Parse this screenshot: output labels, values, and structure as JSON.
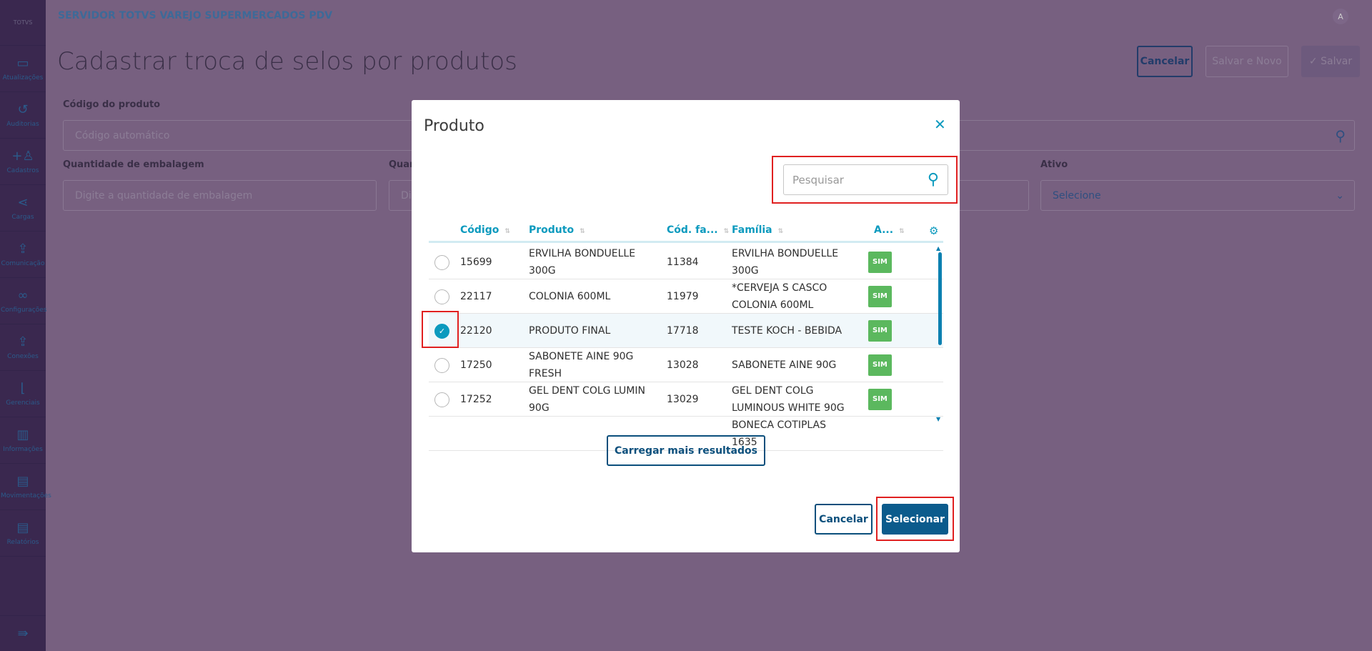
{
  "sidebar": {
    "logo": "TOTVS",
    "items": [
      {
        "label": "Atualizações",
        "icon": "card-icon",
        "glyph": "▭"
      },
      {
        "label": "Auditorias",
        "icon": "history-icon",
        "glyph": "↺"
      },
      {
        "label": "Cadastros",
        "icon": "add-user-icon",
        "glyph": "+♙"
      },
      {
        "label": "Cargas",
        "icon": "share-icon",
        "glyph": "⋖"
      },
      {
        "label": "Comunicação",
        "icon": "file-upload-icon",
        "glyph": "⇪"
      },
      {
        "label": "Configurações",
        "icon": "link-icon",
        "glyph": "∞"
      },
      {
        "label": "Conexões",
        "icon": "file-upload-icon",
        "glyph": "⇪"
      },
      {
        "label": "Gerenciais",
        "icon": "chart-icon",
        "glyph": "⌊"
      },
      {
        "label": "Informações",
        "icon": "building-icon",
        "glyph": "▥"
      },
      {
        "label": "Movimentações",
        "icon": "clipboard-icon",
        "glyph": "▤"
      },
      {
        "label": "Relatórios",
        "icon": "document-icon",
        "glyph": "▤"
      }
    ],
    "collapse_glyph": "⇛"
  },
  "header": {
    "title": "SERVIDOR TOTVS VAREJO SUPERMERCADOS PDV",
    "avatar": "A"
  },
  "page": {
    "title": "Cadastrar troca de selos por produtos",
    "cancel": "Cancelar",
    "save_new": "Salvar e Novo",
    "save": "✓ Salvar"
  },
  "form": {
    "codigo_label": "Código do produto",
    "codigo_placeholder": "Código automático",
    "qtd_label": "Quantidade de embalagem",
    "qtd_placeholder": "Digite a quantidade de embalagem",
    "qtd2_label": "Quan",
    "qtd2_placeholder": "Di",
    "ativo_label": "Ativo",
    "ativo_value": "Selecione"
  },
  "modal": {
    "title": "Produto",
    "close": "✕",
    "search_placeholder": "Pesquisar",
    "columns": [
      "Código",
      "Produto",
      "Cód. fa...",
      "Família",
      "A..."
    ],
    "rows": [
      {
        "codigo": "15699",
        "produto": "ERVILHA BONDUELLE 300G",
        "cod_familia": "11384",
        "familia": "ERVILHA BONDUELLE 300G",
        "ativo": "SIM",
        "selected": false
      },
      {
        "codigo": "22117",
        "produto": "COLONIA 600ML",
        "cod_familia": "11979",
        "familia": "*CERVEJA S CASCO COLONIA 600ML",
        "ativo": "SIM",
        "selected": false
      },
      {
        "codigo": "22120",
        "produto": "PRODUTO FINAL",
        "cod_familia": "17718",
        "familia": "TESTE KOCH - BEBIDA",
        "ativo": "SIM",
        "selected": true
      },
      {
        "codigo": "17250",
        "produto": "SABONETE AINE 90G FRESH",
        "cod_familia": "13028",
        "familia": "SABONETE AINE 90G",
        "ativo": "SIM",
        "selected": false
      },
      {
        "codigo": "17252",
        "produto": "GEL DENT COLG LUMIN 90G",
        "cod_familia": "13029",
        "familia": "GEL DENT COLG LUMINOUS WHITE 90G",
        "ativo": "SIM",
        "selected": false
      },
      {
        "codigo": "",
        "produto": "",
        "cod_familia": "",
        "familia": "BONECA COTIPLAS 1635",
        "ativo": "",
        "selected": false
      }
    ],
    "load_more": "Carregar mais resultados",
    "cancel": "Cancelar",
    "select": "Selecionar"
  },
  "colors": {
    "accent": "#0c9abe",
    "primary_button": "#0b5b8c",
    "badge": "#5bb85e"
  }
}
